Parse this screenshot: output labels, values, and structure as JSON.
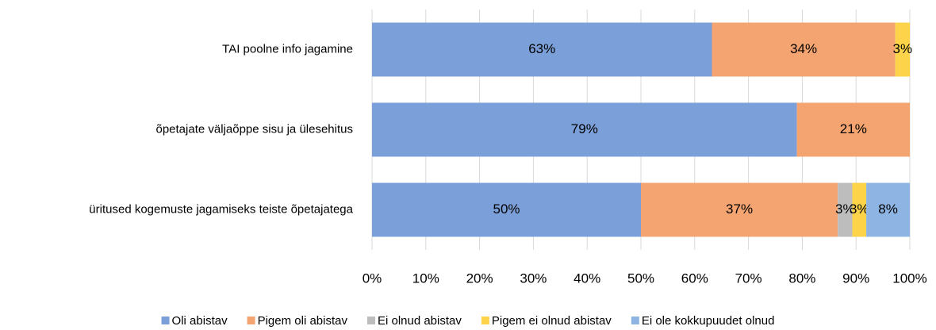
{
  "chart_data": {
    "type": "stacked-bar-horizontal",
    "categories": [
      "TAI poolne info jagamine",
      "õpetajate väljaõppe sisu ja ülesehitus",
      "üritused kogemuste jagamiseks teiste õpetajatega"
    ],
    "series": [
      {
        "name": "Oli abistav",
        "color": "#7b9fd8",
        "values": [
          63.2,
          79,
          50
        ],
        "value_labels": [
          "63%",
          "79%",
          "50%"
        ]
      },
      {
        "name": "Pigem oli abistav",
        "color": "#f4a470",
        "values": [
          34.1,
          21,
          36.6
        ],
        "value_labels": [
          "34%",
          "21%",
          "37%"
        ]
      },
      {
        "name": "Ei olnud abistav",
        "color": "#bdbdbd",
        "values": [
          null,
          null,
          2.7
        ],
        "value_labels": [
          null,
          null,
          "3%"
        ]
      },
      {
        "name": "Pigem ei olnud abistav",
        "color": "#fdd34a",
        "values": [
          2.7,
          null,
          2.6
        ],
        "value_labels": [
          "3%",
          null,
          "3%"
        ]
      },
      {
        "name": "Ei ole kokkupuudet olnud",
        "color": "#8db4e2",
        "values": [
          null,
          null,
          8.1
        ],
        "value_labels": [
          null,
          null,
          "8%"
        ]
      }
    ],
    "xlim": [
      0,
      100
    ],
    "xticks": [
      {
        "value": 0,
        "label": "0%"
      },
      {
        "value": 10,
        "label": "10%"
      },
      {
        "value": 20,
        "label": "20%"
      },
      {
        "value": 30,
        "label": "30%"
      },
      {
        "value": 40,
        "label": "40%"
      },
      {
        "value": 50,
        "label": "50%"
      },
      {
        "value": 60,
        "label": "60%"
      },
      {
        "value": 70,
        "label": "70%"
      },
      {
        "value": 80,
        "label": "80%"
      },
      {
        "value": 90,
        "label": "90%"
      },
      {
        "value": 100,
        "label": "100%"
      }
    ],
    "grid": true,
    "legend": "bottom"
  }
}
